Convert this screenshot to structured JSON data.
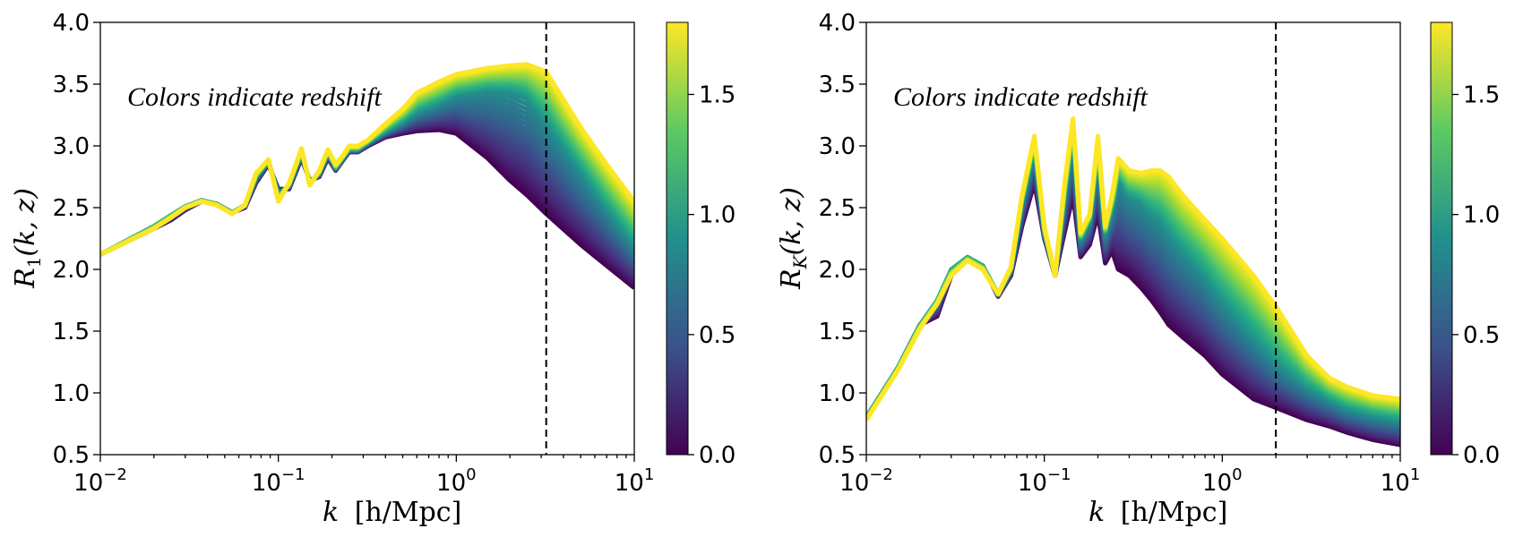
{
  "chart_data": [
    {
      "type": "line",
      "ylabel_main": "R",
      "ylabel_sub": "1",
      "ylabel_args": "(k, z)",
      "xlabel_k": "k",
      "xlabel_unit": "[h/Mpc]",
      "annotation": "Colors indicate redshift",
      "xscale": "log",
      "xlim": [
        0.01,
        10
      ],
      "ylim": [
        0.5,
        4.0
      ],
      "x_ticks": [
        {
          "base": "10",
          "exp": "−2",
          "value": 0.01
        },
        {
          "base": "10",
          "exp": "−1",
          "value": 0.1
        },
        {
          "base": "10",
          "exp": "0",
          "value": 1
        },
        {
          "base": "10",
          "exp": "1",
          "value": 10
        }
      ],
      "y_ticks": [
        "0.5",
        "1.0",
        "1.5",
        "2.0",
        "2.5",
        "3.0",
        "3.5",
        "4.0"
      ],
      "vline_x": 3.2,
      "colorbar": {
        "range": [
          0.0,
          1.8
        ],
        "ticks": [
          "0.0",
          "0.5",
          "1.0",
          "1.5"
        ],
        "colormap": "viridis"
      },
      "x": [
        0.01,
        0.02,
        0.025,
        0.03,
        0.037,
        0.045,
        0.055,
        0.065,
        0.075,
        0.088,
        0.1,
        0.115,
        0.135,
        0.15,
        0.17,
        0.19,
        0.21,
        0.23,
        0.25,
        0.28,
        0.32,
        0.4,
        0.5,
        0.6,
        0.8,
        1.0,
        1.5,
        2.0,
        2.5,
        3.2,
        5.0,
        7.0,
        10.0
      ],
      "series": [
        {
          "z": 0.0,
          "values": [
            2.12,
            2.33,
            2.4,
            2.48,
            2.55,
            2.53,
            2.46,
            2.5,
            2.7,
            2.85,
            2.65,
            2.65,
            2.9,
            2.72,
            2.75,
            2.9,
            2.8,
            2.88,
            2.95,
            2.95,
            3.0,
            3.07,
            3.1,
            3.12,
            3.13,
            3.1,
            2.9,
            2.72,
            2.6,
            2.45,
            2.2,
            2.03,
            1.85
          ]
        },
        {
          "z": 0.9,
          "values": [
            2.12,
            2.35,
            2.44,
            2.51,
            2.56,
            2.53,
            2.46,
            2.52,
            2.75,
            2.88,
            2.6,
            2.68,
            2.95,
            2.7,
            2.78,
            2.95,
            2.82,
            2.9,
            2.97,
            2.97,
            3.03,
            3.12,
            3.2,
            3.28,
            3.35,
            3.42,
            3.46,
            3.45,
            3.4,
            3.2,
            2.8,
            2.5,
            2.2
          ]
        },
        {
          "z": 1.8,
          "values": [
            2.12,
            2.33,
            2.42,
            2.5,
            2.55,
            2.52,
            2.45,
            2.52,
            2.78,
            2.89,
            2.55,
            2.7,
            2.98,
            2.68,
            2.8,
            2.97,
            2.85,
            2.92,
            3.0,
            3.0,
            3.05,
            3.18,
            3.3,
            3.43,
            3.52,
            3.58,
            3.63,
            3.65,
            3.66,
            3.6,
            3.15,
            2.85,
            2.55
          ]
        }
      ]
    },
    {
      "type": "line",
      "ylabel_main": "R",
      "ylabel_sub": "K",
      "ylabel_args": "(k, z)",
      "xlabel_k": "k",
      "xlabel_unit": "[h/Mpc]",
      "annotation": "Colors indicate redshift",
      "xscale": "log",
      "xlim": [
        0.01,
        10
      ],
      "ylim": [
        0.5,
        4.0
      ],
      "x_ticks": [
        {
          "base": "10",
          "exp": "−2",
          "value": 0.01
        },
        {
          "base": "10",
          "exp": "−1",
          "value": 0.1
        },
        {
          "base": "10",
          "exp": "0",
          "value": 1
        },
        {
          "base": "10",
          "exp": "1",
          "value": 10
        }
      ],
      "y_ticks": [
        "0.5",
        "1.0",
        "1.5",
        "2.0",
        "2.5",
        "3.0",
        "3.5",
        "4.0"
      ],
      "vline_x": 2.0,
      "colorbar": {
        "range": [
          0.0,
          1.8
        ],
        "ticks": [
          "0.0",
          "0.5",
          "1.0",
          "1.5"
        ],
        "colormap": "viridis"
      },
      "x": [
        0.01,
        0.015,
        0.02,
        0.025,
        0.03,
        0.037,
        0.045,
        0.055,
        0.065,
        0.075,
        0.088,
        0.1,
        0.115,
        0.13,
        0.145,
        0.16,
        0.18,
        0.2,
        0.22,
        0.24,
        0.26,
        0.3,
        0.35,
        0.4,
        0.45,
        0.5,
        0.6,
        0.8,
        1.0,
        1.5,
        2.0,
        3.0,
        4.0,
        5.0,
        7.0,
        10.0
      ],
      "series": [
        {
          "z": 0.0,
          "values": [
            0.8,
            1.2,
            1.55,
            1.62,
            1.95,
            2.08,
            2.03,
            1.78,
            1.95,
            2.35,
            2.7,
            2.25,
            1.95,
            2.3,
            2.6,
            2.1,
            2.2,
            2.45,
            2.05,
            2.15,
            2.0,
            1.95,
            1.85,
            1.75,
            1.65,
            1.55,
            1.45,
            1.3,
            1.15,
            0.95,
            0.88,
            0.78,
            0.73,
            0.68,
            0.62,
            0.58
          ]
        },
        {
          "z": 0.9,
          "values": [
            0.8,
            1.2,
            1.55,
            1.75,
            2.0,
            2.1,
            2.03,
            1.8,
            2.0,
            2.55,
            3.0,
            2.3,
            1.95,
            2.6,
            3.1,
            2.25,
            2.4,
            2.95,
            2.3,
            2.5,
            2.75,
            2.6,
            2.55,
            2.45,
            2.4,
            2.3,
            2.15,
            1.95,
            1.75,
            1.45,
            1.25,
            1.05,
            0.95,
            0.88,
            0.82,
            0.78
          ]
        },
        {
          "z": 1.8,
          "values": [
            0.78,
            1.18,
            1.52,
            1.72,
            1.95,
            2.07,
            2.0,
            1.8,
            2.02,
            2.6,
            3.08,
            2.35,
            1.95,
            2.7,
            3.22,
            2.3,
            2.45,
            3.08,
            2.35,
            2.6,
            2.9,
            2.8,
            2.78,
            2.8,
            2.8,
            2.75,
            2.6,
            2.4,
            2.25,
            1.95,
            1.7,
            1.3,
            1.12,
            1.05,
            0.98,
            0.95
          ]
        }
      ]
    }
  ]
}
